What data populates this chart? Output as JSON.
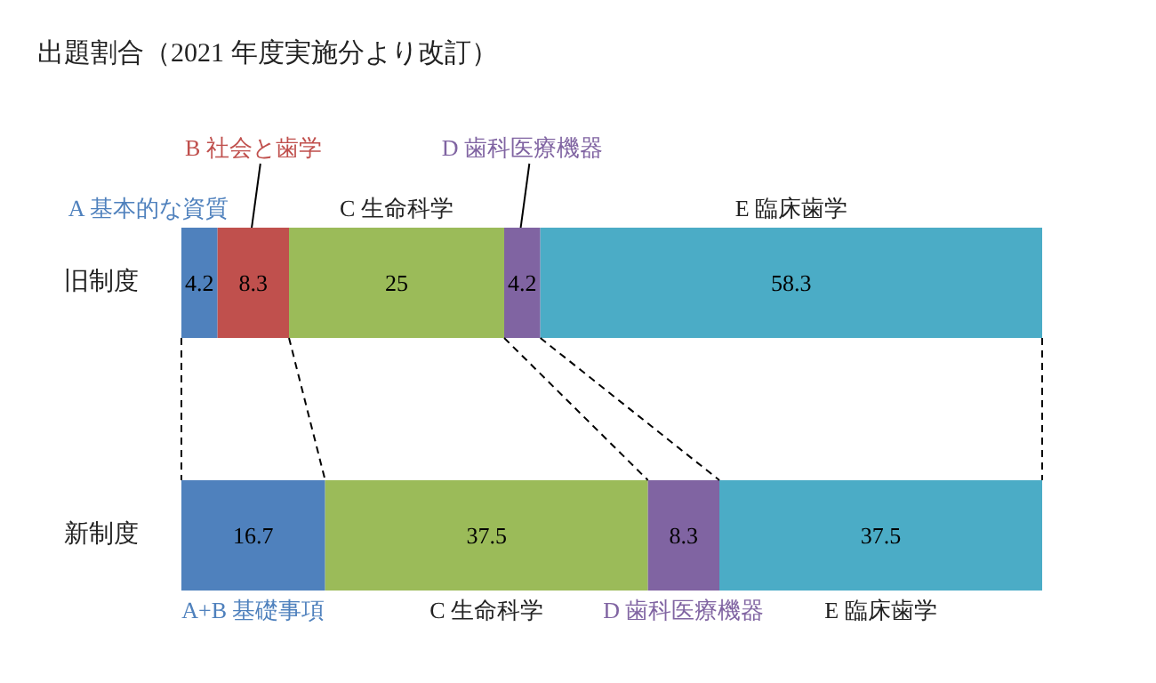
{
  "chart_data": {
    "type": "bar",
    "orientation": "horizontal",
    "stacked": true,
    "title": "出題割合（2021 年度実施分より改訂）",
    "categories": [
      "旧制度",
      "新制度"
    ],
    "series": [
      {
        "name": "A 基本的な資質",
        "color": "#4f81bd",
        "values": [
          4.2,
          null
        ]
      },
      {
        "name": "B 社会と歯学",
        "color": "#c0504d",
        "values": [
          8.3,
          null
        ]
      },
      {
        "name": "A+B 基礎事項",
        "color": "#4f81bd",
        "values": [
          null,
          16.7
        ]
      },
      {
        "name": "C 生命科学",
        "color": "#9bbb59",
        "values": [
          25,
          37.5
        ]
      },
      {
        "name": "D 歯科医療機器",
        "color": "#8064a2",
        "values": [
          4.2,
          8.3
        ]
      },
      {
        "name": "E 臨床歯学",
        "color": "#4bacc6",
        "values": [
          58.3,
          37.5
        ]
      }
    ],
    "data_labels": true,
    "legend": false,
    "grid": false,
    "tick_labels": "y"
  }
}
